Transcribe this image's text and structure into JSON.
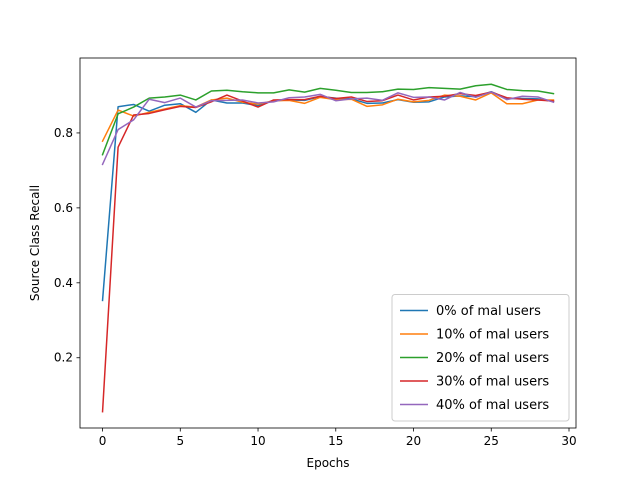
{
  "chart_data": {
    "type": "line",
    "title": "",
    "xlabel": "Epochs",
    "ylabel": "Source Class Recall",
    "xlim": [
      -1.45,
      30.45
    ],
    "ylim": [
      0.0125,
      1.0
    ],
    "xticks": [
      0,
      5,
      10,
      15,
      20,
      25,
      30
    ],
    "yticks": [
      0.2,
      0.4,
      0.6,
      0.8
    ],
    "grid": false,
    "legend_position": "lower right",
    "x": [
      0,
      1,
      2,
      3,
      4,
      5,
      6,
      7,
      8,
      9,
      10,
      11,
      12,
      13,
      14,
      15,
      16,
      17,
      18,
      19,
      20,
      21,
      22,
      23,
      24,
      25,
      26,
      27,
      28,
      29
    ],
    "series": [
      {
        "name": "0% of mal users",
        "color": "#1f77b4",
        "values": [
          0.353,
          0.87,
          0.876,
          0.858,
          0.874,
          0.878,
          0.855,
          0.888,
          0.88,
          0.88,
          0.873,
          0.886,
          0.888,
          0.887,
          0.897,
          0.893,
          0.891,
          0.879,
          0.88,
          0.889,
          0.882,
          0.883,
          0.896,
          0.899,
          0.897,
          0.91,
          0.892,
          0.892,
          0.891,
          0.884
        ]
      },
      {
        "name": "10% of mal users",
        "color": "#ff7f0e",
        "values": [
          0.778,
          0.861,
          0.845,
          0.855,
          0.864,
          0.873,
          0.869,
          0.888,
          0.893,
          0.882,
          0.877,
          0.886,
          0.887,
          0.879,
          0.895,
          0.889,
          0.89,
          0.871,
          0.875,
          0.89,
          0.883,
          0.887,
          0.901,
          0.898,
          0.888,
          0.907,
          0.878,
          0.878,
          0.888,
          0.888
        ]
      },
      {
        "name": "20% of mal users",
        "color": "#2ca02c",
        "values": [
          0.742,
          0.851,
          0.869,
          0.893,
          0.896,
          0.901,
          0.888,
          0.912,
          0.914,
          0.91,
          0.907,
          0.907,
          0.915,
          0.909,
          0.919,
          0.914,
          0.908,
          0.908,
          0.91,
          0.917,
          0.916,
          0.921,
          0.919,
          0.917,
          0.926,
          0.93,
          0.916,
          0.913,
          0.912,
          0.905
        ]
      },
      {
        "name": "30% of mal users",
        "color": "#d62728",
        "values": [
          0.056,
          0.762,
          0.848,
          0.852,
          0.862,
          0.871,
          0.868,
          0.883,
          0.901,
          0.885,
          0.869,
          0.888,
          0.889,
          0.889,
          0.898,
          0.892,
          0.896,
          0.884,
          0.886,
          0.901,
          0.888,
          0.896,
          0.898,
          0.905,
          0.9,
          0.909,
          0.894,
          0.89,
          0.888,
          0.885
        ]
      },
      {
        "name": "40% of mal users",
        "color": "#9467bd",
        "values": [
          0.716,
          0.809,
          0.835,
          0.89,
          0.881,
          0.893,
          0.869,
          0.886,
          0.887,
          0.888,
          0.88,
          0.883,
          0.894,
          0.896,
          0.903,
          0.886,
          0.891,
          0.893,
          0.887,
          0.907,
          0.895,
          0.896,
          0.888,
          0.908,
          0.895,
          0.909,
          0.889,
          0.898,
          0.896,
          0.882
        ]
      }
    ]
  }
}
